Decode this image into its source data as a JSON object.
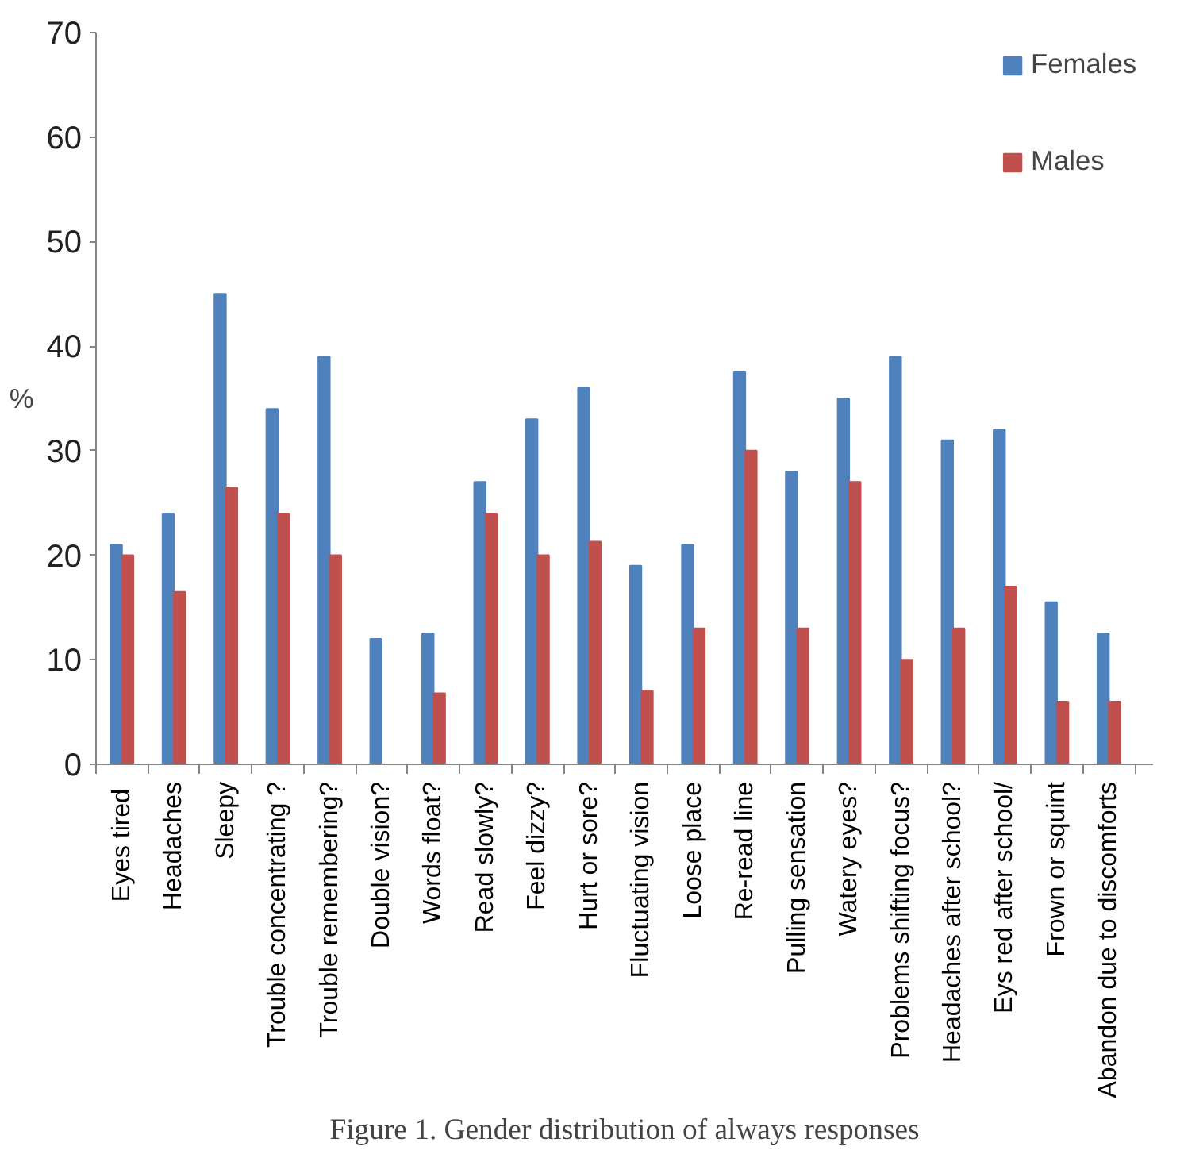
{
  "chart_data": {
    "type": "bar",
    "ylabel": "%",
    "annotations": [
      "Figure 1. Gender distribution of always responses"
    ],
    "categories": [
      "Eyes  tired",
      "Headaches",
      "Sleepy",
      "Trouble concentrating ?",
      "Trouble remembering?",
      "Double vision?",
      "Words float?",
      "Read slowly?",
      "Feel dizzy?",
      "Hurt or sore?",
      "Fluctuating vision",
      "Loose place",
      "Re-read line",
      "Pulling sensation",
      "Watery eyes?",
      "Problems shifting focus?",
      "Headaches after school?",
      "Eys red after school/",
      "Frown or squint",
      "Abandon due to discomforts"
    ],
    "series": [
      {
        "name": "Females",
        "color": "#4f81bd",
        "values": [
          21,
          24,
          45,
          34,
          39,
          12,
          12.5,
          27,
          33,
          36,
          19,
          21,
          37.5,
          28,
          35,
          39,
          31,
          32,
          15.5,
          12.5
        ]
      },
      {
        "name": "Males",
        "color": "#c0504d",
        "values": [
          20,
          16.5,
          26.5,
          24,
          20,
          0,
          6.8,
          24,
          20,
          21.3,
          7,
          13,
          30,
          13,
          27,
          10,
          13,
          17,
          6,
          6
        ]
      }
    ],
    "ylim": [
      0,
      70
    ],
    "yticks": [
      0,
      10,
      20,
      30,
      40,
      50,
      60,
      70
    ],
    "grid": false,
    "legend": "top right"
  }
}
